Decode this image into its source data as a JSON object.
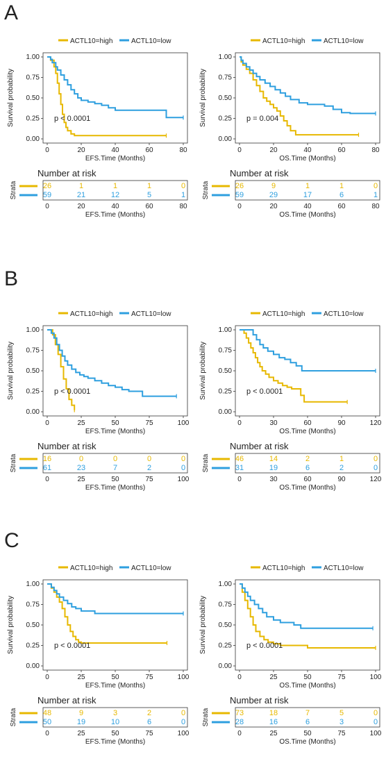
{
  "colors": {
    "high": "#E7B800",
    "low": "#2E9FDF",
    "axis": "#222222",
    "frame": "#333333"
  },
  "labels": {
    "y_axis": "Survival probability",
    "risk_title": "Number at risk",
    "strata": "Strata"
  },
  "panels": [
    {
      "letter": "A",
      "chart_data": [
        {
          "type": "line",
          "legend": [
            "ACTL10=high",
            "ACTL10=low"
          ],
          "legend_position": "top",
          "xlabel": "EFS.Time (Months)",
          "ylabel": "Survival probability",
          "xlim": [
            0,
            80
          ],
          "ylim": [
            0,
            1
          ],
          "xticks": [
            0,
            20,
            40,
            60,
            80
          ],
          "yticks": [
            "0.00",
            "0.25",
            "0.50",
            "0.75",
            "1.00"
          ],
          "pvalue": "p < 0.0001",
          "series": [
            {
              "name": "ACTL10=high",
              "x": [
                0,
                2,
                4,
                5,
                6,
                7,
                8,
                9,
                10,
                11,
                12,
                14,
                16,
                70
              ],
              "y": [
                1,
                0.96,
                0.88,
                0.8,
                0.68,
                0.55,
                0.42,
                0.3,
                0.2,
                0.14,
                0.1,
                0.06,
                0.04,
                0.04
              ]
            },
            {
              "name": "ACTL10=low",
              "x": [
                0,
                2,
                3,
                5,
                6,
                8,
                10,
                12,
                14,
                16,
                18,
                20,
                24,
                28,
                32,
                36,
                40,
                45,
                50,
                55,
                60,
                65,
                70,
                80
              ],
              "y": [
                1,
                0.97,
                0.93,
                0.88,
                0.84,
                0.78,
                0.72,
                0.66,
                0.6,
                0.55,
                0.5,
                0.47,
                0.45,
                0.43,
                0.41,
                0.38,
                0.35,
                0.35,
                0.35,
                0.35,
                0.35,
                0.35,
                0.26,
                0.26
              ]
            }
          ],
          "risk_table": {
            "high": [
              "26",
              "1",
              "1",
              "1",
              "0"
            ],
            "low": [
              "59",
              "21",
              "12",
              "5",
              "1"
            ]
          }
        },
        {
          "type": "line",
          "legend": [
            "ACTL10=high",
            "ACTL10=low"
          ],
          "legend_position": "top",
          "xlabel": "OS.Time (Months)",
          "ylabel": "Survival probability",
          "xlim": [
            0,
            80
          ],
          "ylim": [
            0,
            1
          ],
          "xticks": [
            0,
            20,
            40,
            60,
            80
          ],
          "yticks": [
            "0.00",
            "0.25",
            "0.50",
            "0.75",
            "1.00"
          ],
          "pvalue": "p = 0.004",
          "series": [
            {
              "name": "ACTL10=high",
              "x": [
                0,
                1,
                2,
                4,
                6,
                8,
                10,
                12,
                14,
                16,
                18,
                20,
                22,
                24,
                26,
                28,
                30,
                33,
                70
              ],
              "y": [
                1,
                0.94,
                0.9,
                0.85,
                0.8,
                0.72,
                0.65,
                0.58,
                0.5,
                0.46,
                0.42,
                0.38,
                0.34,
                0.28,
                0.22,
                0.16,
                0.1,
                0.05,
                0.05
              ]
            },
            {
              "name": "ACTL10=low",
              "x": [
                0,
                1,
                2,
                4,
                6,
                8,
                10,
                12,
                15,
                18,
                21,
                24,
                27,
                30,
                35,
                40,
                45,
                50,
                55,
                60,
                65,
                80
              ],
              "y": [
                1,
                0.96,
                0.92,
                0.88,
                0.84,
                0.8,
                0.76,
                0.72,
                0.68,
                0.64,
                0.6,
                0.56,
                0.52,
                0.48,
                0.44,
                0.42,
                0.42,
                0.4,
                0.36,
                0.32,
                0.31,
                0.31
              ]
            }
          ],
          "risk_table": {
            "high": [
              "26",
              "9",
              "1",
              "1",
              "0"
            ],
            "low": [
              "59",
              "29",
              "17",
              "6",
              "1"
            ]
          }
        }
      ]
    },
    {
      "letter": "B",
      "chart_data": [
        {
          "type": "line",
          "legend": [
            "ACTL10=high",
            "ACTL10=low"
          ],
          "legend_position": "top",
          "xlabel": "EFS.Time (Months)",
          "ylabel": "Survival probability",
          "xlim": [
            0,
            100
          ],
          "ylim": [
            0,
            1
          ],
          "xticks": [
            0,
            25,
            50,
            75,
            100
          ],
          "yticks": [
            "0.00",
            "0.25",
            "0.50",
            "0.75",
            "1.00"
          ],
          "pvalue": "p < 0.0001",
          "series": [
            {
              "name": "ACTL10=high",
              "x": [
                0,
                4,
                6,
                8,
                10,
                12,
                14,
                16,
                18,
                20
              ],
              "y": [
                1,
                0.94,
                0.82,
                0.7,
                0.55,
                0.4,
                0.28,
                0.15,
                0.08,
                0.02
              ]
            },
            {
              "name": "ACTL10=low",
              "x": [
                0,
                3,
                5,
                7,
                9,
                11,
                13,
                15,
                18,
                21,
                24,
                27,
                30,
                35,
                40,
                45,
                50,
                55,
                60,
                65,
                70,
                95
              ],
              "y": [
                1,
                0.96,
                0.9,
                0.82,
                0.75,
                0.68,
                0.62,
                0.57,
                0.52,
                0.48,
                0.45,
                0.43,
                0.41,
                0.38,
                0.35,
                0.32,
                0.3,
                0.27,
                0.25,
                0.25,
                0.19,
                0.19
              ]
            }
          ],
          "risk_table": {
            "high": [
              "16",
              "0",
              "0",
              "0",
              "0"
            ],
            "low": [
              "61",
              "23",
              "7",
              "2",
              "0"
            ]
          }
        },
        {
          "type": "line",
          "legend": [
            "ACTL10=high",
            "ACTL10=low"
          ],
          "legend_position": "top",
          "xlabel": "OS.Time (Months)",
          "ylabel": "Survival probability",
          "xlim": [
            0,
            120
          ],
          "ylim": [
            0,
            1
          ],
          "xticks": [
            0,
            30,
            60,
            90,
            120
          ],
          "yticks": [
            "0.00",
            "0.25",
            "0.50",
            "0.75",
            "1.00"
          ],
          "pvalue": "p < 0.0001",
          "series": [
            {
              "name": "ACTL10=high",
              "x": [
                0,
                4,
                6,
                8,
                10,
                12,
                14,
                16,
                18,
                20,
                23,
                26,
                30,
                34,
                38,
                42,
                46,
                50,
                54,
                57,
                95
              ],
              "y": [
                1,
                0.96,
                0.9,
                0.84,
                0.78,
                0.72,
                0.66,
                0.6,
                0.55,
                0.5,
                0.46,
                0.42,
                0.38,
                0.35,
                0.32,
                0.3,
                0.28,
                0.28,
                0.2,
                0.12,
                0.12
              ]
            },
            {
              "name": "ACTL10=low",
              "x": [
                0,
                10,
                12,
                15,
                18,
                21,
                25,
                30,
                35,
                40,
                45,
                50,
                55,
                60,
                120
              ],
              "y": [
                1,
                1,
                0.94,
                0.88,
                0.82,
                0.78,
                0.74,
                0.7,
                0.66,
                0.64,
                0.6,
                0.56,
                0.5,
                0.5,
                0.5
              ]
            }
          ],
          "risk_table": {
            "high": [
              "46",
              "14",
              "2",
              "1",
              "0"
            ],
            "low": [
              "31",
              "19",
              "6",
              "2",
              "0"
            ]
          }
        }
      ]
    },
    {
      "letter": "C",
      "chart_data": [
        {
          "type": "line",
          "legend": [
            "ACTL10=high",
            "ACTL10=low"
          ],
          "legend_position": "top",
          "xlabel": "EFS.Time (Months)",
          "ylabel": "Survival probability",
          "xlim": [
            0,
            100
          ],
          "ylim": [
            0,
            1
          ],
          "xticks": [
            0,
            25,
            50,
            75,
            100
          ],
          "yticks": [
            "0.00",
            "0.25",
            "0.50",
            "0.75",
            "1.00"
          ],
          "pvalue": "p < 0.0001",
          "series": [
            {
              "name": "ACTL10=high",
              "x": [
                0,
                3,
                5,
                7,
                9,
                11,
                13,
                15,
                17,
                19,
                21,
                23,
                25,
                88
              ],
              "y": [
                1,
                0.95,
                0.9,
                0.84,
                0.78,
                0.7,
                0.6,
                0.5,
                0.42,
                0.36,
                0.32,
                0.29,
                0.28,
                0.28
              ]
            },
            {
              "name": "ACTL10=low",
              "x": [
                0,
                3,
                5,
                7,
                9,
                12,
                15,
                18,
                21,
                25,
                30,
                35,
                100
              ],
              "y": [
                1,
                0.96,
                0.92,
                0.88,
                0.84,
                0.8,
                0.76,
                0.72,
                0.7,
                0.67,
                0.67,
                0.64,
                0.64
              ]
            }
          ],
          "risk_table": {
            "high": [
              "48",
              "9",
              "3",
              "2",
              "0"
            ],
            "low": [
              "50",
              "19",
              "10",
              "6",
              "0"
            ]
          }
        },
        {
          "type": "line",
          "legend": [
            "ACTL10=high",
            "ACTL10=low"
          ],
          "legend_position": "top",
          "xlabel": "OS.Time (Months)",
          "ylabel": "Survival probability",
          "xlim": [
            0,
            100
          ],
          "ylim": [
            0,
            1
          ],
          "xticks": [
            0,
            25,
            50,
            75,
            100
          ],
          "yticks": [
            "0.00",
            "0.25",
            "0.50",
            "0.75",
            "1.00"
          ],
          "pvalue": "p < 0.0001",
          "series": [
            {
              "name": "ACTL10=high",
              "x": [
                0,
                2,
                4,
                6,
                8,
                10,
                12,
                15,
                18,
                21,
                25,
                30,
                45,
                50,
                100
              ],
              "y": [
                1,
                0.9,
                0.8,
                0.7,
                0.6,
                0.5,
                0.42,
                0.36,
                0.32,
                0.29,
                0.27,
                0.25,
                0.25,
                0.22,
                0.22
              ]
            },
            {
              "name": "ACTL10=low",
              "x": [
                0,
                2,
                4,
                6,
                8,
                11,
                14,
                17,
                20,
                25,
                30,
                35,
                40,
                45,
                98
              ],
              "y": [
                1,
                0.95,
                0.9,
                0.85,
                0.8,
                0.75,
                0.7,
                0.65,
                0.6,
                0.56,
                0.53,
                0.53,
                0.5,
                0.46,
                0.46
              ]
            }
          ],
          "risk_table": {
            "high": [
              "73",
              "18",
              "7",
              "5",
              "0"
            ],
            "low": [
              "28",
              "16",
              "6",
              "3",
              "0"
            ]
          }
        }
      ]
    }
  ]
}
